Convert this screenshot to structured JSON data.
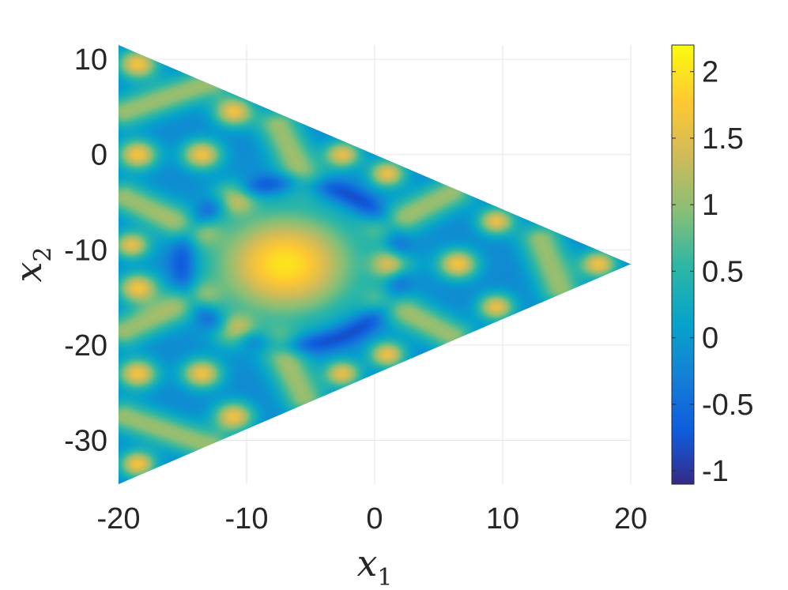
{
  "chart_data": {
    "type": "heatmap",
    "title": "",
    "xlabel": "x",
    "xlabel_sub": "1",
    "ylabel": "x",
    "ylabel_sub": "2",
    "xlim": [
      -20,
      20
    ],
    "ylim": [
      -34.6,
      11.5
    ],
    "x_ticks": [
      -20,
      -10,
      0,
      10,
      20
    ],
    "x_tick_labels": [
      "-20",
      "-10",
      "0",
      "10",
      "20"
    ],
    "y_ticks": [
      10,
      0,
      -10,
      -20,
      -30
    ],
    "y_tick_labels": [
      "10",
      "0",
      "-10",
      "-20",
      "-30"
    ],
    "grid": true,
    "domain_triangle": [
      [
        -20,
        11.5
      ],
      [
        20,
        -11.5
      ],
      [
        -20,
        -34.6
      ]
    ],
    "colorbar": {
      "colormap": "parula",
      "range": [
        -1.1,
        2.2
      ],
      "ticks": [
        2,
        1.5,
        1,
        0.5,
        0,
        -0.5,
        -1
      ],
      "tick_labels": [
        "2",
        "1.5",
        "1",
        "0.5",
        "0",
        "-0.5",
        "-1"
      ]
    },
    "background_value": -0.2,
    "features": [
      {
        "kind": "spot",
        "x": -7.0,
        "y": -11.5,
        "value": 2.0,
        "size": 4.0
      },
      {
        "kind": "ring",
        "x": -6.5,
        "y": -11.5,
        "value": -1.0,
        "size": 8.5
      },
      {
        "kind": "spot",
        "x": -18.5,
        "y": 9.5,
        "value": 1.65,
        "size": 1.1
      },
      {
        "kind": "spot",
        "x": -11.0,
        "y": 4.5,
        "value": 1.6,
        "size": 1.1
      },
      {
        "kind": "spot",
        "x": -18.5,
        "y": 0.0,
        "value": 1.65,
        "size": 1.1
      },
      {
        "kind": "spot",
        "x": -13.5,
        "y": 0.0,
        "value": 1.6,
        "size": 1.1
      },
      {
        "kind": "spot",
        "x": -2.5,
        "y": 0.0,
        "value": 1.5,
        "size": 1.0
      },
      {
        "kind": "spot",
        "x": -11.0,
        "y": -4.5,
        "value": 1.6,
        "size": 1.1
      },
      {
        "kind": "spot",
        "x": 1.0,
        "y": -2.0,
        "value": 1.55,
        "size": 1.0
      },
      {
        "kind": "spot",
        "x": -19.0,
        "y": -9.5,
        "value": 1.5,
        "size": 1.0
      },
      {
        "kind": "spot",
        "x": -18.5,
        "y": -14.0,
        "value": 1.6,
        "size": 1.1
      },
      {
        "kind": "spot",
        "x": 1.5,
        "y": -11.5,
        "value": 1.65,
        "size": 1.1
      },
      {
        "kind": "spot",
        "x": 6.5,
        "y": -11.5,
        "value": 1.65,
        "size": 1.1
      },
      {
        "kind": "spot",
        "x": 9.5,
        "y": -7.0,
        "value": 1.55,
        "size": 1.0
      },
      {
        "kind": "spot",
        "x": 9.5,
        "y": -16.0,
        "value": 1.55,
        "size": 1.0
      },
      {
        "kind": "spot",
        "x": 17.5,
        "y": -11.5,
        "value": 1.6,
        "size": 1.0
      },
      {
        "kind": "spot",
        "x": -11.0,
        "y": -18.5,
        "value": 1.6,
        "size": 1.1
      },
      {
        "kind": "spot",
        "x": 1.0,
        "y": -21.0,
        "value": 1.55,
        "size": 1.0
      },
      {
        "kind": "spot",
        "x": -18.5,
        "y": -23.0,
        "value": 1.65,
        "size": 1.1
      },
      {
        "kind": "spot",
        "x": -13.5,
        "y": -23.0,
        "value": 1.6,
        "size": 1.1
      },
      {
        "kind": "spot",
        "x": -2.5,
        "y": -23.0,
        "value": 1.5,
        "size": 1.0
      },
      {
        "kind": "spot",
        "x": -11.0,
        "y": -27.5,
        "value": 1.6,
        "size": 1.1
      },
      {
        "kind": "spot",
        "x": -18.5,
        "y": -32.5,
        "value": 1.65,
        "size": 1.0
      },
      {
        "kind": "arc",
        "x": [
          -19.5,
          -13.0
        ],
        "y": [
          4.5,
          7.5
        ],
        "value": 1.05,
        "size": 1.2
      },
      {
        "kind": "arc",
        "x": [
          -7.5,
          -5.5
        ],
        "y": [
          3.0,
          -2.5
        ],
        "value": 1.05,
        "size": 1.2
      },
      {
        "kind": "arc",
        "x": [
          -19.5,
          -14.0
        ],
        "y": [
          -4.5,
          -8.0
        ],
        "value": 1.05,
        "size": 1.2
      },
      {
        "kind": "arc",
        "x": [
          1.0,
          6.0
        ],
        "y": [
          -7.5,
          -4.0
        ],
        "value": 1.05,
        "size": 1.2
      },
      {
        "kind": "arc",
        "x": [
          13.0,
          14.5
        ],
        "y": [
          -9.0,
          -14.0
        ],
        "value": 1.05,
        "size": 1.2
      },
      {
        "kind": "arc",
        "x": [
          -19.5,
          -14.0
        ],
        "y": [
          -18.5,
          -15.0
        ],
        "value": 1.05,
        "size": 1.2
      },
      {
        "kind": "arc",
        "x": [
          1.0,
          6.0
        ],
        "y": [
          -15.5,
          -19.0
        ],
        "value": 1.05,
        "size": 1.2
      },
      {
        "kind": "arc",
        "x": [
          -7.5,
          -5.5
        ],
        "y": [
          -20.0,
          -25.5
        ],
        "value": 1.05,
        "size": 1.2
      },
      {
        "kind": "arc",
        "x": [
          -19.5,
          -13.0
        ],
        "y": [
          -27.5,
          -30.5
        ],
        "value": 1.05,
        "size": 1.2
      }
    ]
  }
}
